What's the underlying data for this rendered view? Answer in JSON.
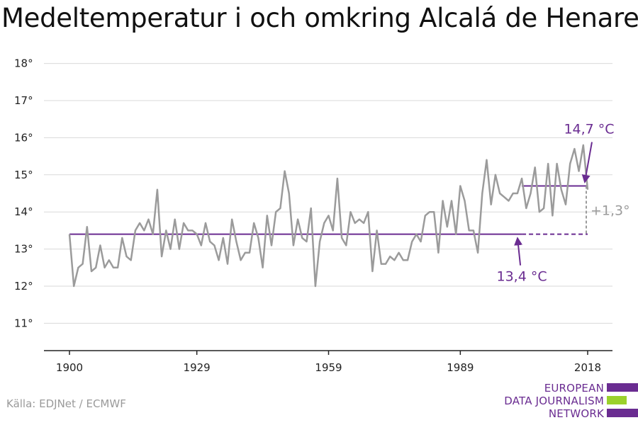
{
  "colors": {
    "series": "#9b9b9b",
    "accent": "#6a2c91",
    "grid": "#d9d9d9",
    "logo_green": "#9bd12c"
  },
  "title": "Medeltemperatur i och omkring Alcalá de Henares",
  "source": "Källa: EDJNet / ECMWF",
  "logo": {
    "lines": [
      "EUROPEAN",
      "DATA JOURNALISM",
      "NETWORK"
    ]
  },
  "chart_data": {
    "type": "line",
    "title": "Medeltemperatur i och omkring Alcalá de Henares",
    "xlabel": "",
    "ylabel": "",
    "x_ticks": [
      1900,
      1929,
      1959,
      1989,
      2018
    ],
    "y_ticks": [
      11,
      12,
      13,
      14,
      15,
      16,
      17,
      18
    ],
    "y_tick_labels": [
      "11°",
      "12°",
      "13°",
      "14°",
      "15°",
      "16°",
      "17°",
      "18°"
    ],
    "xlim": [
      1900,
      2018
    ],
    "ylim": [
      10.5,
      18.2
    ],
    "grid": true,
    "series": [
      {
        "x": [
          1900,
          1901,
          1902,
          1903,
          1904,
          1905,
          1906,
          1907,
          1908,
          1909,
          1910,
          1911,
          1912,
          1913,
          1914,
          1915,
          1916,
          1917,
          1918,
          1919,
          1920,
          1921,
          1922,
          1923,
          1924,
          1925,
          1926,
          1927,
          1928,
          1929,
          1930,
          1931,
          1932,
          1933,
          1934,
          1935,
          1936,
          1937,
          1938,
          1939,
          1940,
          1941,
          1942,
          1943,
          1944,
          1945,
          1946,
          1947,
          1948,
          1949,
          1950,
          1951,
          1952,
          1953,
          1954,
          1955,
          1956,
          1957,
          1958,
          1959,
          1960,
          1961,
          1962,
          1963,
          1964,
          1965,
          1966,
          1967,
          1968,
          1969,
          1970,
          1971,
          1972,
          1973,
          1974,
          1975,
          1976,
          1977,
          1978,
          1979,
          1980,
          1981,
          1982,
          1983,
          1984,
          1985,
          1986,
          1987,
          1988,
          1989,
          1990,
          1991,
          1992,
          1993,
          1994,
          1995,
          1996,
          1997,
          1998,
          1999,
          2000,
          2001,
          2002,
          2003,
          2004,
          2005,
          2006,
          2007,
          2008,
          2009,
          2010,
          2011,
          2012,
          2013,
          2014,
          2015,
          2016,
          2017,
          2018
        ],
        "values": [
          13.4,
          12.0,
          12.5,
          12.6,
          13.6,
          12.4,
          12.5,
          13.1,
          12.5,
          12.7,
          12.5,
          12.5,
          13.3,
          12.8,
          12.7,
          13.5,
          13.7,
          13.5,
          13.8,
          13.4,
          14.6,
          12.8,
          13.5,
          13.0,
          13.8,
          13.0,
          13.7,
          13.5,
          13.5,
          13.4,
          13.1,
          13.7,
          13.2,
          13.1,
          12.7,
          13.3,
          12.6,
          13.8,
          13.2,
          12.7,
          12.9,
          12.9,
          13.7,
          13.3,
          12.5,
          13.9,
          13.1,
          14.0,
          14.1,
          15.1,
          14.5,
          13.1,
          13.8,
          13.3,
          13.2,
          14.1,
          12.0,
          13.2,
          13.7,
          13.9,
          13.5,
          14.9,
          13.3,
          13.1,
          14.0,
          13.7,
          13.8,
          13.7,
          14.0,
          12.4,
          13.5,
          12.6,
          12.6,
          12.8,
          12.7,
          12.9,
          12.7,
          12.7,
          13.2,
          13.4,
          13.2,
          13.9,
          14.0,
          14.0,
          12.9,
          14.3,
          13.6,
          14.3,
          13.4,
          14.7,
          14.3,
          13.5,
          13.5,
          12.9,
          14.5,
          15.4,
          14.2,
          15.0,
          14.5,
          14.4,
          14.3,
          14.5,
          14.5,
          14.9,
          14.1,
          14.5,
          15.2,
          14.0,
          14.1,
          15.3,
          13.9,
          15.3,
          14.6,
          14.2,
          15.3,
          15.7,
          15.1,
          15.8,
          14.6
        ]
      }
    ],
    "annotations": [
      {
        "label": "13,4 °C",
        "value": 13.4,
        "from": 1900,
        "to": 2018,
        "solid_to": 2003
      },
      {
        "label": "14,7 °C",
        "value": 14.7,
        "from": 2003,
        "to": 2018
      },
      {
        "label": "+1,3°"
      }
    ]
  }
}
